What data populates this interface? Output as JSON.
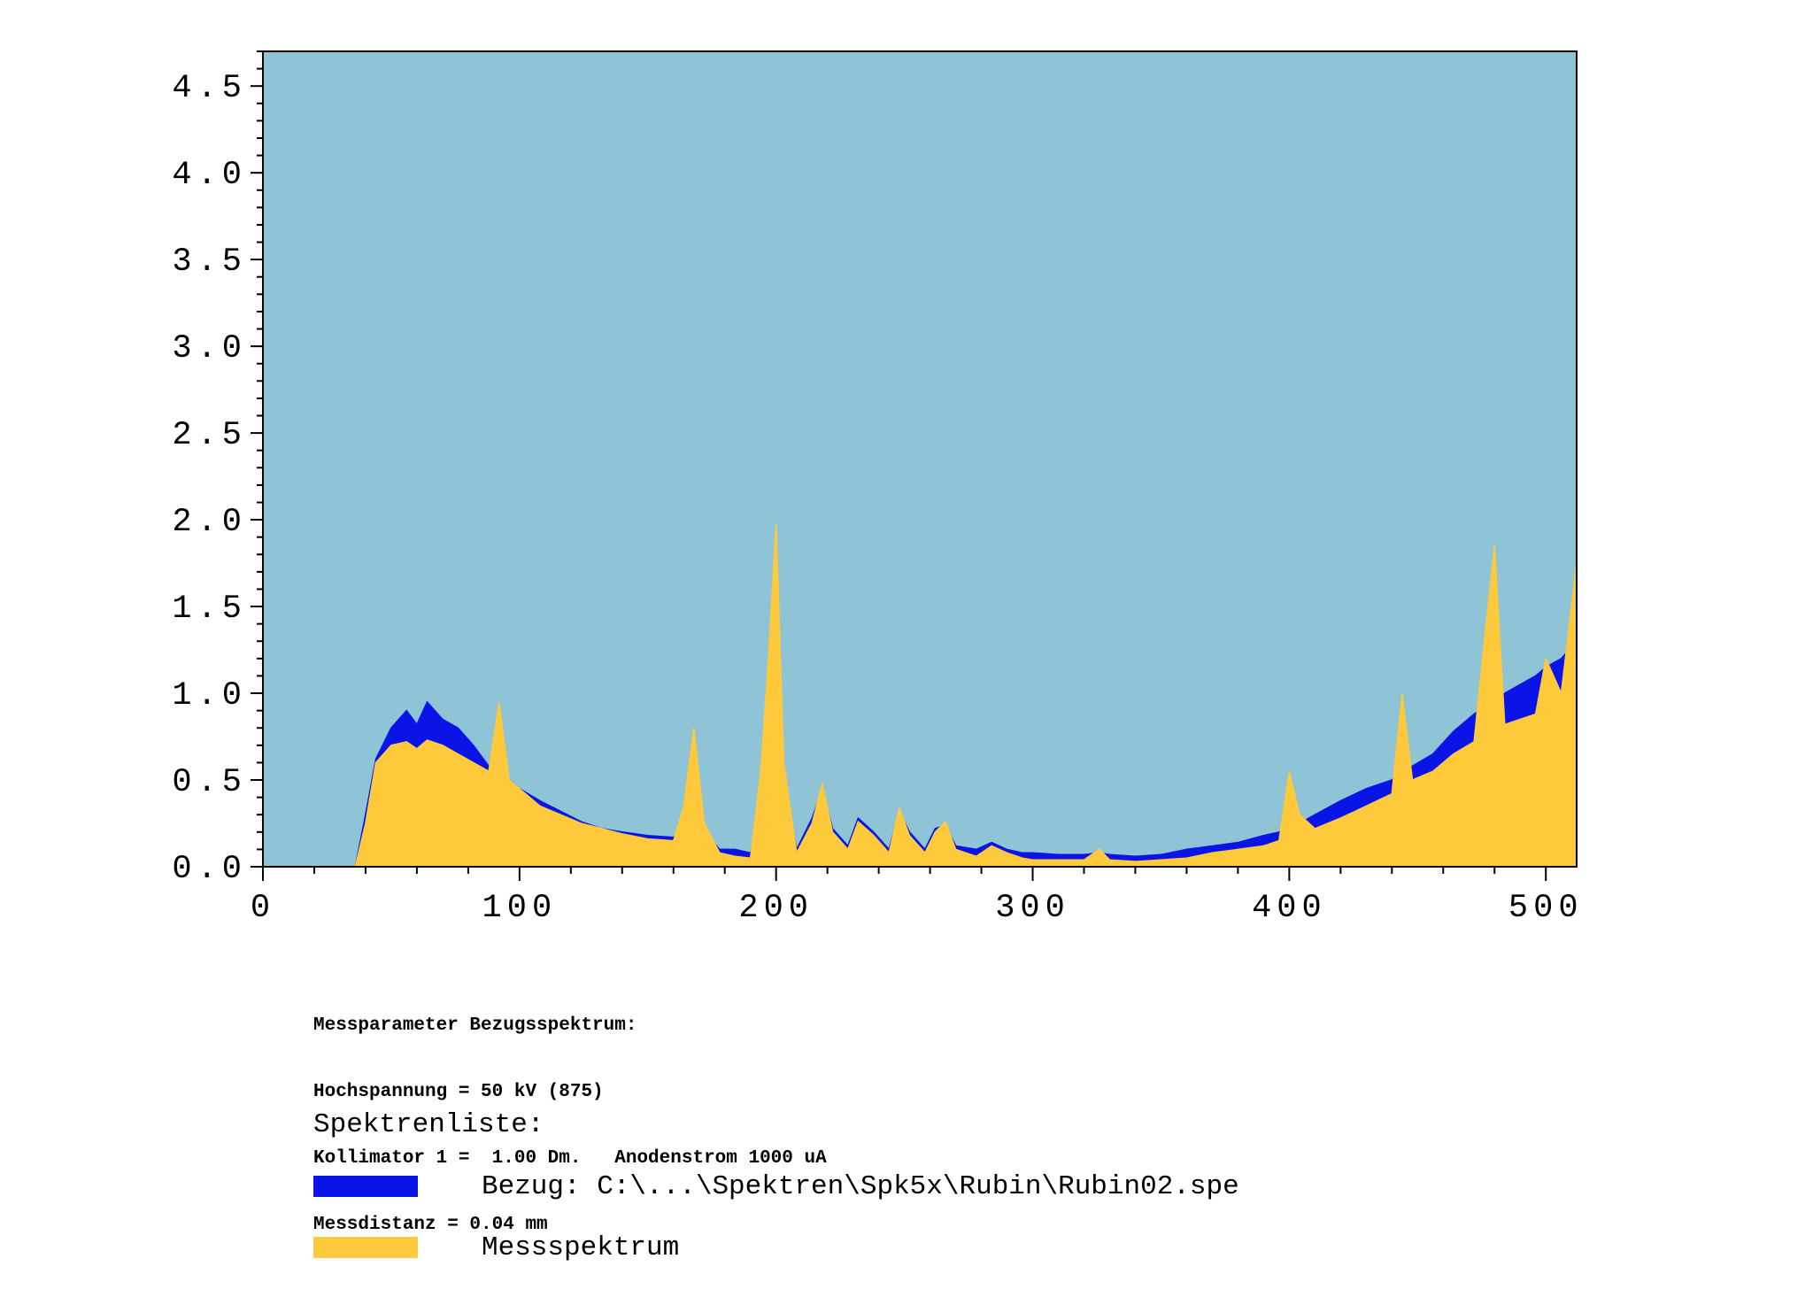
{
  "chart_data": {
    "type": "area",
    "title": "",
    "xlabel": "",
    "ylabel": "",
    "xlim": [
      0,
      512
    ],
    "ylim": [
      0,
      4.7
    ],
    "x_ticks": [
      0,
      100,
      200,
      300,
      400,
      500
    ],
    "x_tick_labels": [
      "0",
      "100",
      "200",
      "300",
      "400",
      "500"
    ],
    "y_ticks": [
      0,
      0.5,
      1.0,
      1.5,
      2.0,
      2.5,
      3.0,
      3.5,
      4.0,
      4.5
    ],
    "y_tick_labels": [
      "0.0",
      "0.5",
      "1.0",
      "1.5",
      "2.0",
      "2.5",
      "3.0",
      "3.5",
      "4.0",
      "4.5"
    ],
    "plot_background": "#8fc4d6",
    "grid": false,
    "legend_placement": "below",
    "x": [
      0,
      20,
      36,
      40,
      44,
      50,
      56,
      60,
      64,
      70,
      76,
      82,
      88,
      92,
      96,
      100,
      108,
      116,
      124,
      132,
      140,
      150,
      160,
      164,
      168,
      172,
      178,
      184,
      190,
      194,
      197,
      200,
      203,
      208,
      214,
      218,
      222,
      228,
      232,
      238,
      244,
      248,
      252,
      258,
      262,
      266,
      270,
      278,
      284,
      290,
      296,
      300,
      310,
      320,
      326,
      330,
      340,
      350,
      360,
      370,
      380,
      390,
      396,
      400,
      404,
      410,
      420,
      430,
      440,
      444,
      448,
      456,
      464,
      472,
      476,
      480,
      484,
      490,
      496,
      500,
      506,
      512
    ],
    "series": [
      {
        "name": "Bezug: C:\\...\\Spektren\\Spk5x\\Rubin\\Rubin02.spe",
        "color": "#0a14e6",
        "values": [
          0,
          0,
          0,
          0.3,
          0.62,
          0.8,
          0.9,
          0.82,
          0.95,
          0.85,
          0.8,
          0.7,
          0.58,
          0.55,
          0.5,
          0.45,
          0.38,
          0.32,
          0.26,
          0.22,
          0.2,
          0.18,
          0.17,
          0.22,
          0.42,
          0.2,
          0.1,
          0.1,
          0.08,
          0.25,
          1.0,
          1.85,
          0.5,
          0.1,
          0.28,
          0.45,
          0.22,
          0.12,
          0.28,
          0.2,
          0.1,
          0.32,
          0.2,
          0.1,
          0.22,
          0.24,
          0.12,
          0.1,
          0.14,
          0.1,
          0.08,
          0.08,
          0.07,
          0.07,
          0.08,
          0.07,
          0.06,
          0.07,
          0.1,
          0.12,
          0.14,
          0.18,
          0.2,
          0.23,
          0.25,
          0.3,
          0.38,
          0.45,
          0.5,
          0.55,
          0.58,
          0.65,
          0.78,
          0.88,
          0.92,
          0.95,
          1.0,
          1.05,
          1.1,
          1.15,
          1.2,
          1.3
        ]
      },
      {
        "name": "Messspektrum",
        "color": "#ffc93c",
        "values": [
          0,
          0,
          0,
          0.25,
          0.6,
          0.7,
          0.72,
          0.68,
          0.73,
          0.7,
          0.65,
          0.6,
          0.55,
          0.95,
          0.5,
          0.45,
          0.35,
          0.3,
          0.25,
          0.22,
          0.19,
          0.16,
          0.15,
          0.35,
          0.8,
          0.25,
          0.08,
          0.06,
          0.05,
          0.55,
          1.2,
          1.98,
          0.6,
          0.08,
          0.25,
          0.48,
          0.2,
          0.1,
          0.26,
          0.18,
          0.08,
          0.34,
          0.18,
          0.08,
          0.2,
          0.26,
          0.1,
          0.06,
          0.12,
          0.08,
          0.05,
          0.04,
          0.04,
          0.04,
          0.1,
          0.04,
          0.03,
          0.04,
          0.05,
          0.08,
          0.1,
          0.12,
          0.15,
          0.55,
          0.3,
          0.22,
          0.28,
          0.35,
          0.42,
          1.0,
          0.5,
          0.55,
          0.65,
          0.72,
          1.3,
          1.85,
          0.82,
          0.85,
          0.88,
          1.2,
          1.0,
          1.75
        ]
      }
    ]
  },
  "params": {
    "line1": "Messparameter Bezugsspektrum:",
    "line2": "Hochspannung = 50 kV (875)",
    "line3": "Kollimator 1 =  1.00 Dm.   Anodenstrom 1000 uA",
    "line4": "Messdistanz = 0.04 mm"
  },
  "legend": {
    "title": "Spektrenliste:",
    "items": [
      {
        "label": "Bezug: C:\\...\\Spektren\\Spk5x\\Rubin\\Rubin02.spe",
        "color": "#0a14e6"
      },
      {
        "label": "Messspektrum",
        "color": "#ffc93c"
      }
    ]
  }
}
